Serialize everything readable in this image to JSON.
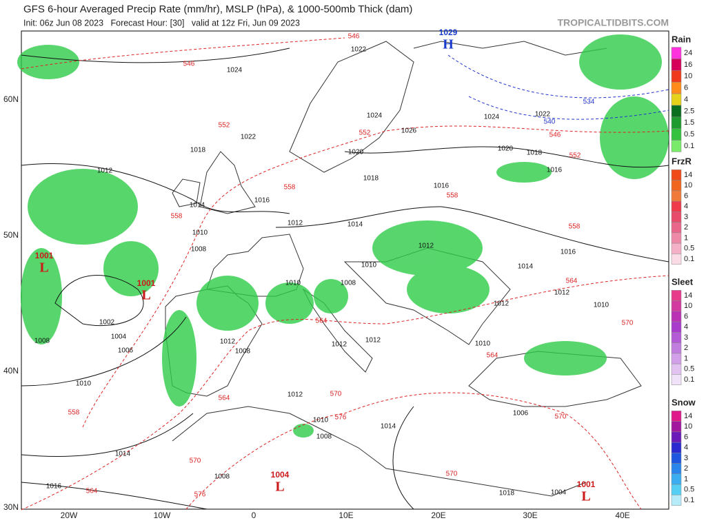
{
  "header": {
    "title": "GFS 6-hour Averaged Precip Rate (mm/hr), MSLP (hPa), & 1000-500mb Thick (dam)",
    "subtitle": "Init: 06z Jun 08 2023   Forecast Hour: [30]   valid at 12z Fri, Jun 09 2023",
    "site": "TROPICALTIDBITS.COM"
  },
  "map": {
    "lat_labels": [
      "60N",
      "50N",
      "40N",
      "30N"
    ],
    "lon_labels": [
      "20W",
      "10W",
      "0",
      "10E",
      "20E",
      "30E",
      "40E"
    ],
    "pressure_centers": [
      {
        "value": 1029,
        "type": "H"
      },
      {
        "value": 1001,
        "type": "L"
      },
      {
        "value": 1001,
        "type": "L"
      },
      {
        "value": 1004,
        "type": "L"
      },
      {
        "value": 1001,
        "type": "L"
      }
    ],
    "isobar_labels": [
      1022,
      1024,
      1022,
      1018,
      1016,
      1014,
      1012,
      1010,
      1008,
      1024,
      1026,
      1020,
      1018,
      1016,
      1014,
      1012,
      1010,
      1008,
      1010,
      1022,
      1024,
      1020,
      1018,
      1016,
      1012,
      1016,
      1014,
      1012,
      1010,
      1012,
      1002,
      1004,
      1006,
      1008,
      1010,
      1012,
      1014,
      1016,
      1008,
      1018,
      1004,
      1006,
      1014,
      1012,
      1012,
      1012,
      1010,
      1008,
      1010,
      1008
    ],
    "thickness_labels": [
      546,
      546,
      552,
      552,
      558,
      558,
      546,
      552,
      558,
      564,
      564,
      570,
      570,
      570,
      576,
      570,
      576,
      564,
      558,
      564,
      570,
      558,
      564
    ],
    "cold_thickness_labels": [
      534,
      540
    ]
  },
  "legends": [
    {
      "title": "Rain",
      "ticks": [
        24,
        16,
        10,
        6,
        4,
        2.5,
        1.5,
        0.5,
        0.1
      ],
      "colors": [
        "#ff33dd",
        "#d6005a",
        "#f03a1e",
        "#ff8c1a",
        "#e6d21a",
        "#0a6e1e",
        "#1f9a2e",
        "#35c23e",
        "#7aea6a"
      ]
    },
    {
      "title": "FrzR",
      "ticks": [
        14,
        10,
        6,
        4,
        3,
        2,
        1,
        0.5,
        0.1
      ],
      "colors": [
        "#f04a1a",
        "#f0661e",
        "#f07a3a",
        "#ee3a4a",
        "#e84a6a",
        "#e8668a",
        "#ee8aa8",
        "#f4b0c6",
        "#fadbe6"
      ]
    },
    {
      "title": "Sleet",
      "ticks": [
        14,
        10,
        6,
        4,
        3,
        2,
        1,
        0.5,
        0.1
      ],
      "colors": [
        "#e83a8a",
        "#d23aa0",
        "#bb33b5",
        "#a83acc",
        "#b45ad6",
        "#c27ede",
        "#d2a0e8",
        "#e2c2f0",
        "#f0e2f8"
      ]
    },
    {
      "title": "Snow",
      "ticks": [
        14,
        10,
        6,
        4,
        3,
        2,
        1,
        0.5,
        0.1
      ],
      "colors": [
        "#e0198a",
        "#a1179e",
        "#6a1ab8",
        "#2a2ad0",
        "#1f57e0",
        "#2a86ea",
        "#3aaef0",
        "#55d0f4",
        "#b6ecfa"
      ]
    }
  ]
}
